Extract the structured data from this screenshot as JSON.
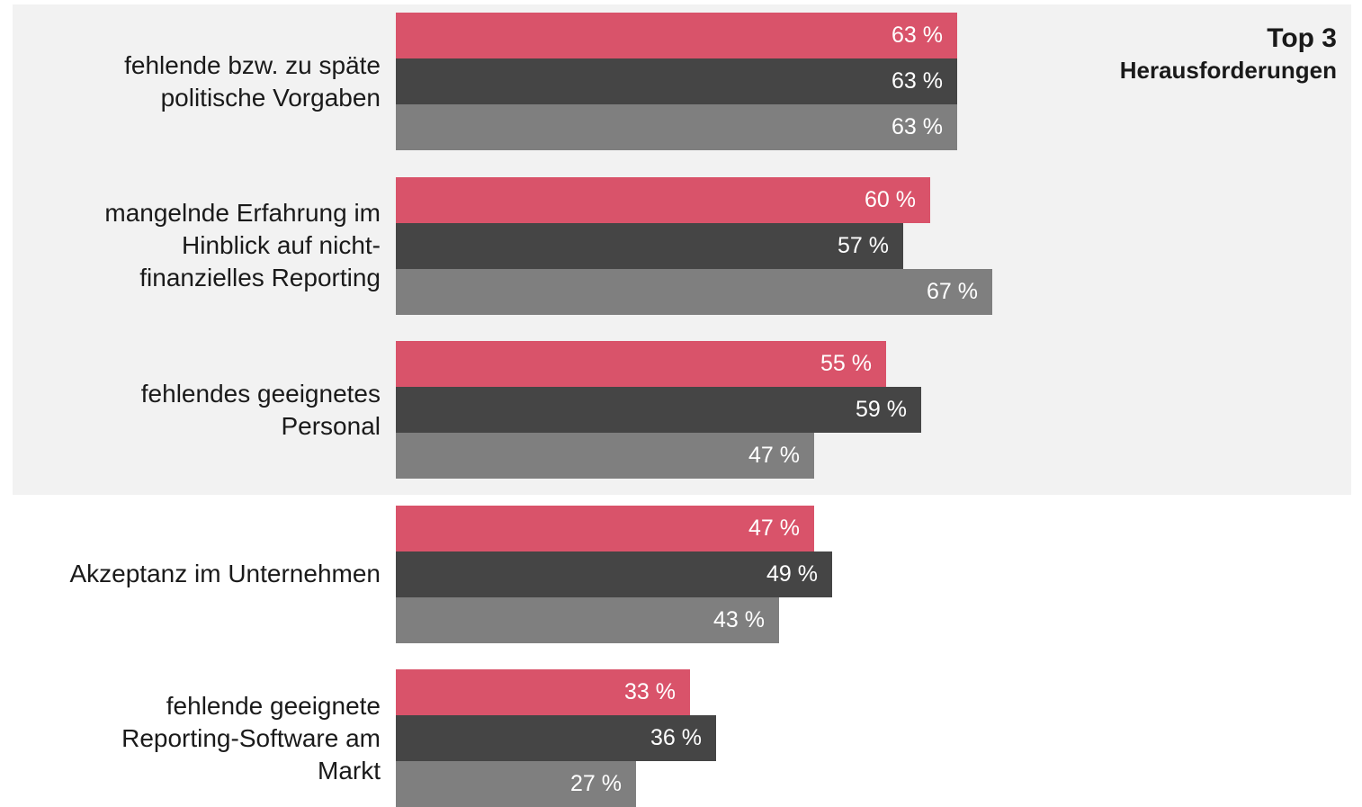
{
  "highlight": {
    "title": "Top 3",
    "subtitle": "Herausforderungen"
  },
  "chart_data": {
    "type": "bar",
    "orientation": "horizontal",
    "categories": [
      "fehlende bzw. zu späte\npolitische Vorgaben",
      "mangelnde Erfahrung im\nHinblick auf nicht-\nfinanzielles Reporting",
      "fehlendes geeignetes\nPersonal",
      "Akzeptanz im Unternehmen",
      "fehlende geeignete\nReporting-Software am\nMarkt"
    ],
    "series": [
      {
        "color": "#d9536a",
        "values": [
          63,
          60,
          55,
          47,
          33
        ]
      },
      {
        "color": "#454545",
        "values": [
          63,
          57,
          59,
          49,
          36
        ]
      },
      {
        "color": "#7f7f7f",
        "values": [
          63,
          67,
          47,
          43,
          27
        ]
      }
    ],
    "value_suffix": " %",
    "xlim": [
      0,
      100
    ],
    "grid": false,
    "legend": "none"
  }
}
